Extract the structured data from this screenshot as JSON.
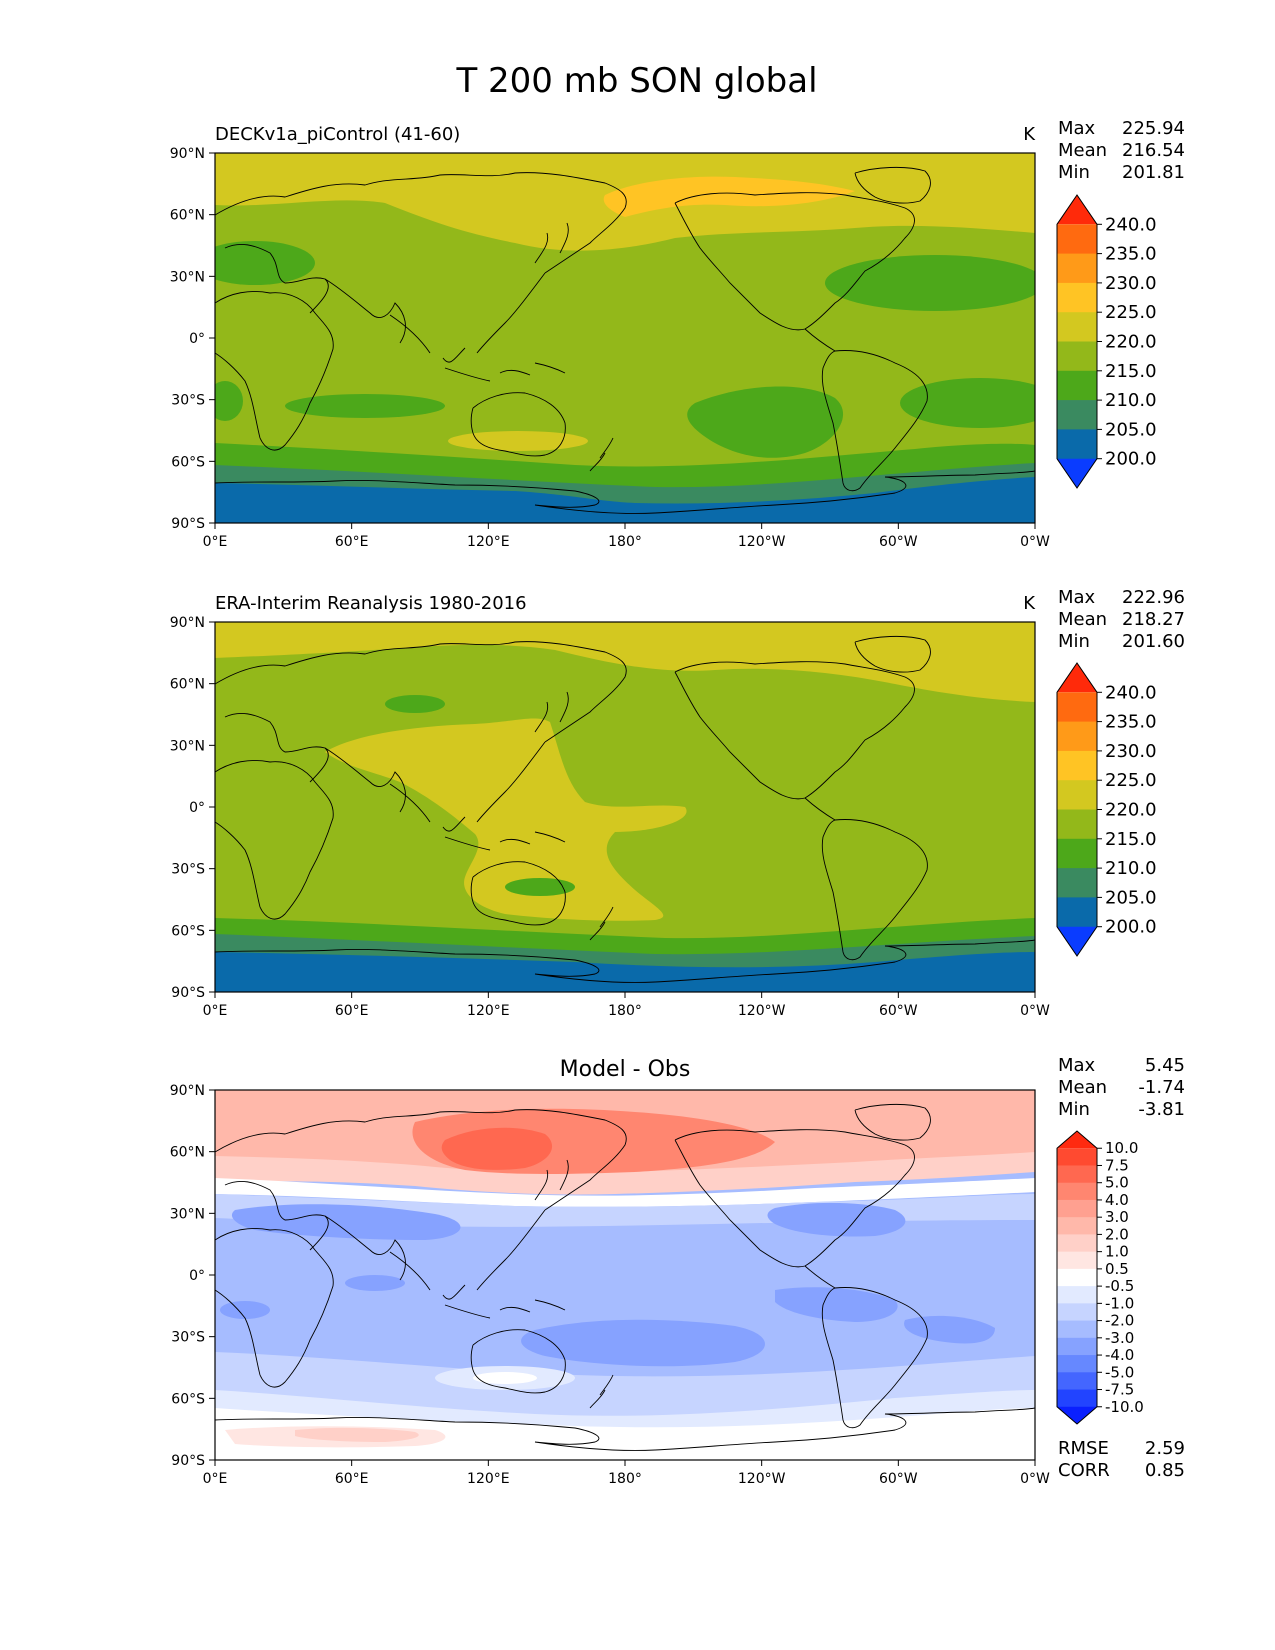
{
  "figure": {
    "title": "T 200 mb SON global"
  },
  "x_ticks": [
    "0°E",
    "60°E",
    "120°E",
    "180°",
    "120°W",
    "60°W",
    "0°W"
  ],
  "y_ticks": [
    "90°N",
    "60°N",
    "30°N",
    "0°",
    "30°S",
    "60°S",
    "90°S"
  ],
  "panels": [
    {
      "id": "model",
      "title": "DECKv1a_piControl (41-60)",
      "units": "K",
      "stats": [
        {
          "label": "Max",
          "value": "225.94"
        },
        {
          "label": "Mean",
          "value": "216.54"
        },
        {
          "label": "Min",
          "value": "201.81"
        }
      ],
      "colorbar": {
        "labels": [
          "240.0",
          "235.0",
          "230.0",
          "225.0",
          "220.0",
          "215.0",
          "210.0",
          "205.0",
          "200.0"
        ],
        "colors": [
          "#ff2a0a",
          "#ff6a10",
          "#ff9a18",
          "#ffc424",
          "#d3c820",
          "#93b81a",
          "#4da81a",
          "#3a8a60",
          "#0a6aaa",
          "#0a3cff"
        ]
      }
    },
    {
      "id": "obs",
      "title": "ERA-Interim Reanalysis 1980-2016",
      "units": "K",
      "stats": [
        {
          "label": "Max",
          "value": "222.96"
        },
        {
          "label": "Mean",
          "value": "218.27"
        },
        {
          "label": "Min",
          "value": "201.60"
        }
      ],
      "colorbar": {
        "labels": [
          "240.0",
          "235.0",
          "230.0",
          "225.0",
          "220.0",
          "215.0",
          "210.0",
          "205.0",
          "200.0"
        ],
        "colors": [
          "#ff2a0a",
          "#ff6a10",
          "#ff9a18",
          "#ffc424",
          "#d3c820",
          "#93b81a",
          "#4da81a",
          "#3a8a60",
          "#0a6aaa",
          "#0a3cff"
        ]
      }
    },
    {
      "id": "diff",
      "title": "Model - Obs",
      "stats": [
        {
          "label": "Max",
          "value": "5.45"
        },
        {
          "label": "Mean",
          "value": "-1.74"
        },
        {
          "label": "Min",
          "value": "-3.81"
        }
      ],
      "colorbar": {
        "labels": [
          "10.0",
          "7.5",
          "5.0",
          "4.0",
          "3.0",
          "2.0",
          "1.0",
          "0.5",
          "-0.5",
          "-1.0",
          "-2.0",
          "-3.0",
          "-4.0",
          "-5.0",
          "-7.5",
          "-10.0"
        ],
        "colors": [
          "#ff2a10",
          "#ff4a30",
          "#ff6850",
          "#ff8670",
          "#ffa090",
          "#ffb8aa",
          "#ffd0c8",
          "#ffe6e2",
          "#ffffff",
          "#e2eaff",
          "#c6d4ff",
          "#a6bcff",
          "#86a2ff",
          "#6688ff",
          "#4466ff",
          "#2244ff",
          "#0a20ff"
        ]
      },
      "extra_stats": [
        {
          "label": "RMSE",
          "value": "2.59"
        },
        {
          "label": "CORR",
          "value": "0.85"
        }
      ]
    }
  ]
}
